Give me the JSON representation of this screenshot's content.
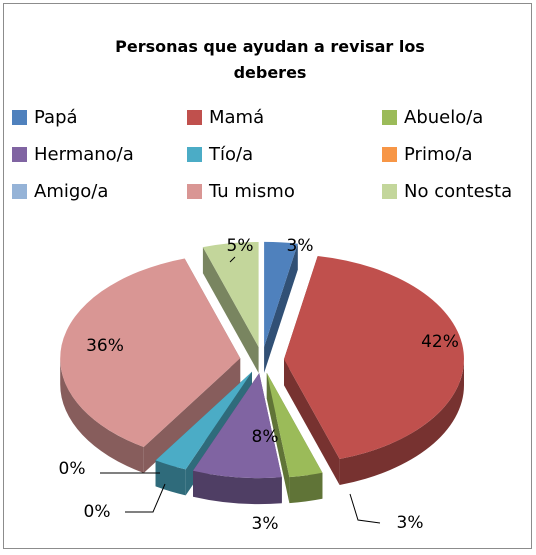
{
  "chart_data": {
    "type": "pie3d",
    "title": "Personas que  ayudan a revisar los deberes",
    "categories": [
      "Papá",
      "Mamá",
      "Abuelo/a",
      "Hermano/a",
      "Tío/a",
      "Primo/a",
      "Amigo/a",
      "Tu mismo",
      "No contesta"
    ],
    "values": [
      3,
      42,
      3,
      8,
      3,
      0,
      0,
      36,
      5
    ],
    "value_labels": [
      "3%",
      "42%",
      "3%",
      "8%",
      "3%",
      "0%",
      "0%",
      "36%",
      "5%"
    ],
    "colors": [
      "#4f81bd",
      "#c0504d",
      "#9bbb59",
      "#8064a2",
      "#4bacc6",
      "#f79646",
      "#95b3d7",
      "#d99694",
      "#c3d69b"
    ],
    "legend": "top"
  }
}
